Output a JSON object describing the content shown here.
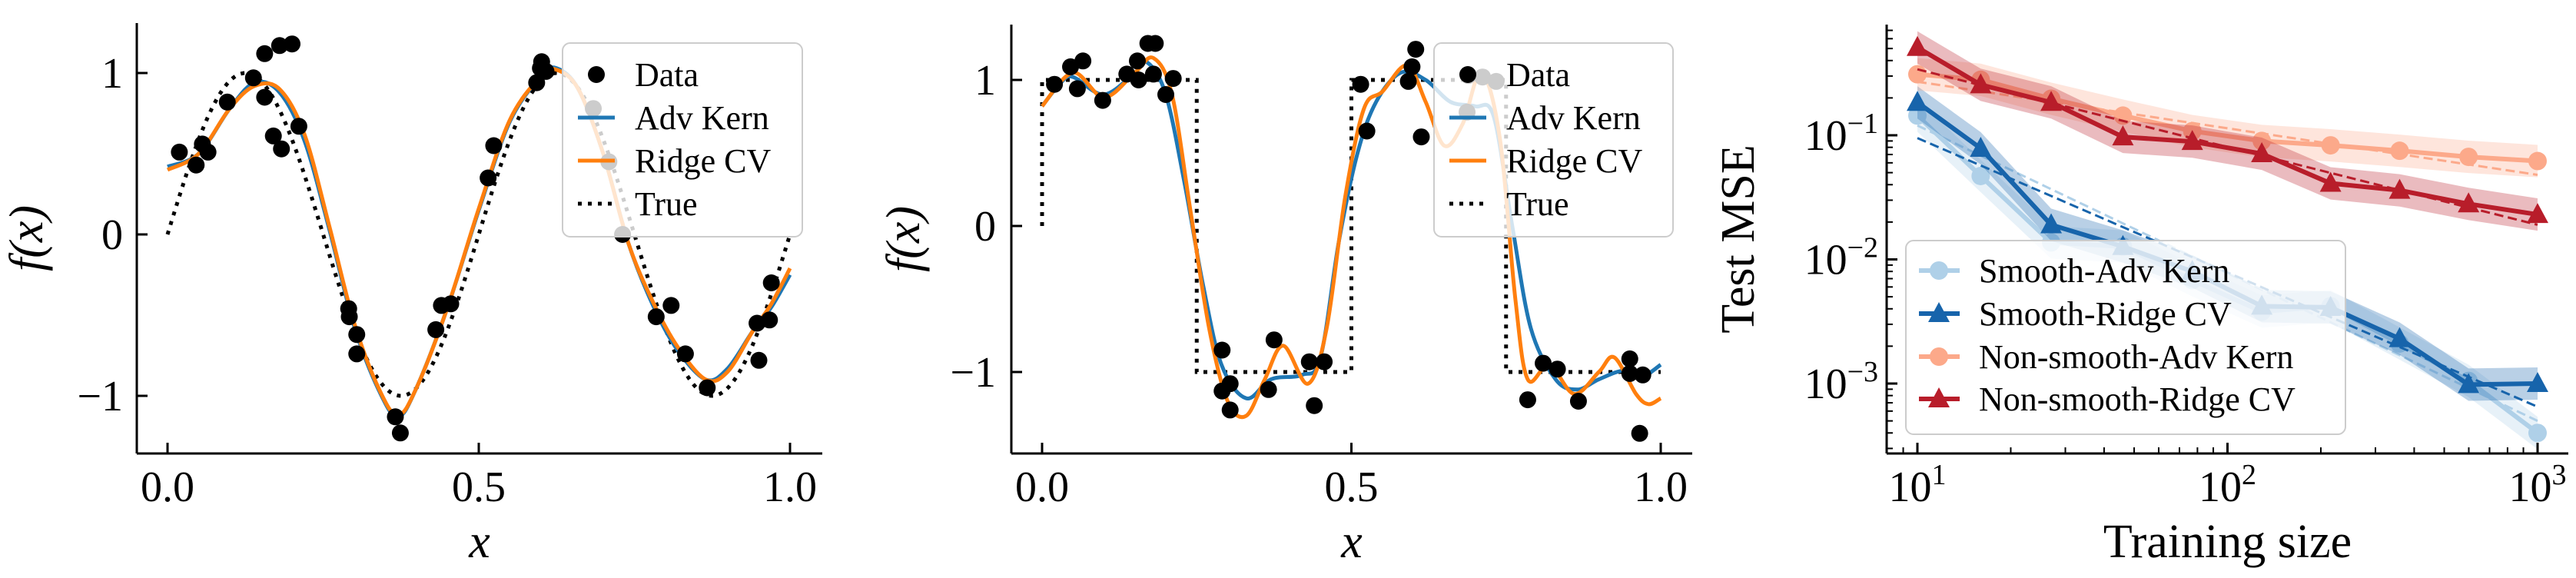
{
  "chart_data": [
    {
      "type": "line",
      "title": "",
      "xlabel": "x",
      "ylabel": "f(x)",
      "xlim": [
        -0.05,
        1.05
      ],
      "ylim": [
        -1.35,
        1.3
      ],
      "xticks": [
        0.0,
        0.5,
        1.0
      ],
      "xtick_labels": [
        "0.0",
        "0.5",
        "1.0"
      ],
      "yticks": [
        -1,
        0,
        1
      ],
      "ytick_labels": [
        "−1",
        "0",
        "1"
      ],
      "legend": {
        "placement": "top-right",
        "entries": [
          "Data",
          "Adv Kern",
          "Ridge CV",
          "True"
        ]
      },
      "true_function": "sin(4*pi*x)",
      "data_points": [
        [
          0.019,
          0.51
        ],
        [
          0.046,
          0.43
        ],
        [
          0.056,
          0.56
        ],
        [
          0.065,
          0.51
        ],
        [
          0.096,
          0.82
        ],
        [
          0.138,
          0.97
        ],
        [
          0.156,
          1.12
        ],
        [
          0.18,
          1.17
        ],
        [
          0.2,
          1.18
        ],
        [
          0.156,
          0.85
        ],
        [
          0.17,
          0.61
        ],
        [
          0.183,
          0.53
        ],
        [
          0.211,
          0.67
        ],
        [
          0.291,
          -0.46
        ],
        [
          0.292,
          -0.51
        ],
        [
          0.304,
          -0.62
        ],
        [
          0.304,
          -0.74
        ],
        [
          0.366,
          -1.13
        ],
        [
          0.374,
          -1.23
        ],
        [
          0.431,
          -0.59
        ],
        [
          0.44,
          -0.44
        ],
        [
          0.455,
          -0.43
        ],
        [
          0.515,
          0.35
        ],
        [
          0.524,
          0.55
        ],
        [
          0.593,
          0.94
        ],
        [
          0.599,
          1.03
        ],
        [
          0.601,
          1.07
        ],
        [
          0.608,
          1.01
        ],
        [
          0.684,
          0.78
        ],
        [
          0.709,
          0.45
        ],
        [
          0.731,
          0.0
        ],
        [
          0.785,
          -0.51
        ],
        [
          0.809,
          -0.44
        ],
        [
          0.832,
          -0.74
        ],
        [
          0.867,
          -0.95
        ],
        [
          0.95,
          -0.78
        ],
        [
          0.947,
          -0.55
        ],
        [
          0.967,
          -0.53
        ],
        [
          0.97,
          -0.3
        ]
      ],
      "series": [
        {
          "name": "Adv Kern",
          "color": "#1f77b4",
          "points": [
            [
              0,
              0.42
            ],
            [
              0.05,
              0.5
            ],
            [
              0.1,
              0.78
            ],
            [
              0.14,
              0.94
            ],
            [
              0.18,
              0.88
            ],
            [
              0.22,
              0.58
            ],
            [
              0.26,
              0.03
            ],
            [
              0.3,
              -0.57
            ],
            [
              0.34,
              -0.97
            ],
            [
              0.37,
              -1.13
            ],
            [
              0.4,
              -0.95
            ],
            [
              0.45,
              -0.45
            ],
            [
              0.5,
              0.15
            ],
            [
              0.55,
              0.7
            ],
            [
              0.6,
              0.98
            ],
            [
              0.625,
              1.03
            ],
            [
              0.66,
              0.9
            ],
            [
              0.7,
              0.5
            ],
            [
              0.74,
              -0.05
            ],
            [
              0.78,
              -0.44
            ],
            [
              0.82,
              -0.72
            ],
            [
              0.865,
              -0.9
            ],
            [
              0.9,
              -0.83
            ],
            [
              0.94,
              -0.6
            ],
            [
              0.97,
              -0.45
            ],
            [
              1.0,
              -0.25
            ]
          ]
        },
        {
          "name": "Ridge CV",
          "color": "#ff7f0e",
          "points": [
            [
              0,
              0.4
            ],
            [
              0.05,
              0.5
            ],
            [
              0.1,
              0.78
            ],
            [
              0.14,
              0.92
            ],
            [
              0.18,
              0.9
            ],
            [
              0.22,
              0.62
            ],
            [
              0.26,
              0.05
            ],
            [
              0.3,
              -0.55
            ],
            [
              0.34,
              -0.96
            ],
            [
              0.37,
              -1.12
            ],
            [
              0.4,
              -0.95
            ],
            [
              0.45,
              -0.45
            ],
            [
              0.5,
              0.16
            ],
            [
              0.55,
              0.71
            ],
            [
              0.6,
              0.98
            ],
            [
              0.625,
              1.02
            ],
            [
              0.66,
              0.9
            ],
            [
              0.7,
              0.5
            ],
            [
              0.74,
              -0.05
            ],
            [
              0.78,
              -0.42
            ],
            [
              0.82,
              -0.7
            ],
            [
              0.865,
              -0.9
            ],
            [
              0.9,
              -0.85
            ],
            [
              0.94,
              -0.6
            ],
            [
              0.97,
              -0.43
            ],
            [
              1.0,
              -0.21
            ]
          ]
        }
      ]
    },
    {
      "type": "line",
      "title": "",
      "xlabel": "x",
      "ylabel": "f(x)",
      "xlim": [
        -0.05,
        1.05
      ],
      "ylim": [
        -1.55,
        1.4
      ],
      "xticks": [
        0.0,
        0.5,
        1.0
      ],
      "xtick_labels": [
        "0.0",
        "0.5",
        "1.0"
      ],
      "yticks": [
        -1,
        0,
        1
      ],
      "ytick_labels": [
        "−1",
        "0",
        "1"
      ],
      "legend": {
        "placement": "top-right",
        "entries": [
          "Data",
          "Adv Kern",
          "Ridge CV",
          "True"
        ]
      },
      "true_function": "sign(sin(4*pi*x))",
      "data_points": [
        [
          0.02,
          0.97
        ],
        [
          0.046,
          1.09
        ],
        [
          0.057,
          0.94
        ],
        [
          0.066,
          1.13
        ],
        [
          0.098,
          0.86
        ],
        [
          0.137,
          1.04
        ],
        [
          0.154,
          1.13
        ],
        [
          0.156,
          1.0
        ],
        [
          0.171,
          1.25
        ],
        [
          0.183,
          1.25
        ],
        [
          0.18,
          1.04
        ],
        [
          0.2,
          0.9
        ],
        [
          0.212,
          1.01
        ],
        [
          0.291,
          -0.85
        ],
        [
          0.291,
          -1.13
        ],
        [
          0.304,
          -1.08
        ],
        [
          0.304,
          -1.26
        ],
        [
          0.366,
          -1.12
        ],
        [
          0.375,
          -0.78
        ],
        [
          0.432,
          -0.93
        ],
        [
          0.44,
          -1.23
        ],
        [
          0.456,
          -0.93
        ],
        [
          0.515,
          0.97
        ],
        [
          0.525,
          0.65
        ],
        [
          0.592,
          0.99
        ],
        [
          0.598,
          1.09
        ],
        [
          0.604,
          1.21
        ],
        [
          0.613,
          0.61
        ],
        [
          0.687,
          0.78
        ],
        [
          0.689,
          1.03
        ],
        [
          0.712,
          1.02
        ],
        [
          0.734,
          0.99
        ],
        [
          0.785,
          -1.19
        ],
        [
          0.81,
          -0.94
        ],
        [
          0.833,
          -0.98
        ],
        [
          0.867,
          -1.2
        ],
        [
          0.95,
          -0.91
        ],
        [
          0.95,
          -1.01
        ],
        [
          0.971,
          -1.02
        ],
        [
          0.966,
          -1.42
        ]
      ],
      "series": [
        {
          "name": "Adv Kern",
          "color": "#1f77b4",
          "points": [
            [
              0,
              0.82
            ],
            [
              0.03,
              0.98
            ],
            [
              0.05,
              1.02
            ],
            [
              0.1,
              0.9
            ],
            [
              0.15,
              1.05
            ],
            [
              0.17,
              1.12
            ],
            [
              0.2,
              0.9
            ],
            [
              0.23,
              0.3
            ],
            [
              0.26,
              -0.4
            ],
            [
              0.29,
              -0.95
            ],
            [
              0.33,
              -1.18
            ],
            [
              0.37,
              -1.05
            ],
            [
              0.42,
              -1.02
            ],
            [
              0.45,
              -0.9
            ],
            [
              0.48,
              -0.1
            ],
            [
              0.51,
              0.5
            ],
            [
              0.54,
              0.85
            ],
            [
              0.58,
              1.05
            ],
            [
              0.62,
              1.0
            ],
            [
              0.66,
              0.85
            ],
            [
              0.7,
              0.82
            ],
            [
              0.73,
              0.75
            ],
            [
              0.76,
              0.0
            ],
            [
              0.79,
              -0.7
            ],
            [
              0.83,
              -1.05
            ],
            [
              0.865,
              -1.12
            ],
            [
              0.9,
              -1.05
            ],
            [
              0.94,
              -0.99
            ],
            [
              0.97,
              -1.03
            ],
            [
              1.0,
              -0.95
            ]
          ]
        },
        {
          "name": "Ridge CV",
          "color": "#ff7f0e",
          "points": [
            [
              0,
              0.82
            ],
            [
              0.05,
              1.05
            ],
            [
              0.1,
              0.88
            ],
            [
              0.15,
              1.05
            ],
            [
              0.18,
              1.15
            ],
            [
              0.21,
              0.9
            ],
            [
              0.24,
              0.1
            ],
            [
              0.27,
              -0.7
            ],
            [
              0.3,
              -1.2
            ],
            [
              0.33,
              -1.3
            ],
            [
              0.36,
              -1.05
            ],
            [
              0.39,
              -0.82
            ],
            [
              0.43,
              -1.08
            ],
            [
              0.46,
              -0.7
            ],
            [
              0.49,
              0.2
            ],
            [
              0.52,
              0.8
            ],
            [
              0.55,
              0.92
            ],
            [
              0.59,
              1.1
            ],
            [
              0.62,
              0.85
            ],
            [
              0.65,
              0.55
            ],
            [
              0.68,
              0.7
            ],
            [
              0.71,
              1.05
            ],
            [
              0.74,
              0.6
            ],
            [
              0.765,
              -0.5
            ],
            [
              0.785,
              -1.05
            ],
            [
              0.82,
              -0.95
            ],
            [
              0.86,
              -1.15
            ],
            [
              0.9,
              -1.0
            ],
            [
              0.925,
              -0.9
            ],
            [
              0.96,
              -1.15
            ],
            [
              0.98,
              -1.22
            ],
            [
              1.0,
              -1.18
            ]
          ]
        }
      ]
    },
    {
      "type": "line",
      "title": "",
      "xlabel": "Training size",
      "ylabel": "Test MSE",
      "xscale": "log",
      "yscale": "log",
      "xlim": [
        8,
        1100
      ],
      "ylim": [
        0.00027,
        0.8
      ],
      "xticks": [
        10,
        100,
        1000
      ],
      "xtick_labels": [
        {
          "base": "10",
          "exp": "1"
        },
        {
          "base": "10",
          "exp": "2"
        },
        {
          "base": "10",
          "exp": "3"
        }
      ],
      "yticks": [
        0.1,
        0.01,
        0.001
      ],
      "ytick_labels": [
        {
          "base": "10",
          "exp": "−1"
        },
        {
          "base": "10",
          "exp": "−2"
        },
        {
          "base": "10",
          "exp": "−3"
        }
      ],
      "legend": {
        "placement": "lower-left",
        "entries": [
          "Smooth-Adv Kern",
          "Smooth-Ridge CV",
          "Non-smooth-Adv Kern",
          "Non-smooth-Ridge CV"
        ]
      },
      "x": [
        10,
        16,
        27,
        46,
        77,
        129,
        215,
        359,
        599,
        1000
      ],
      "series": [
        {
          "name": "Smooth-Adv Kern",
          "color": "#afd0e8",
          "marker": "circle",
          "values": [
            0.144,
            0.047,
            0.0137,
            0.0127,
            0.0068,
            0.0038,
            0.0042,
            0.0021,
            0.00105,
            0.0004
          ],
          "fit": [
            0.12,
            0.0005
          ]
        },
        {
          "name": "Smooth-Ridge CV",
          "color": "#1764ab",
          "marker": "triangle",
          "values": [
            0.184,
            0.0785,
            0.019,
            0.0127,
            0.008,
            0.0042,
            0.0041,
            0.0023,
            0.00098,
            0.001
          ],
          "fit": [
            0.095,
            0.00065
          ]
        },
        {
          "name": "Non-smooth-Adv Kern",
          "color": "#fca98a",
          "marker": "circle",
          "values": [
            0.31,
            0.28,
            0.197,
            0.144,
            0.108,
            0.09,
            0.083,
            0.075,
            0.067,
            0.062
          ],
          "fit": [
            0.27,
            0.048
          ]
        },
        {
          "name": "Non-smooth-Ridge CV",
          "color": "#b81d2a",
          "marker": "triangle",
          "values": [
            0.51,
            0.255,
            0.184,
            0.097,
            0.089,
            0.071,
            0.041,
            0.036,
            0.028,
            0.023
          ],
          "fit": [
            0.34,
            0.019
          ]
        }
      ]
    }
  ]
}
